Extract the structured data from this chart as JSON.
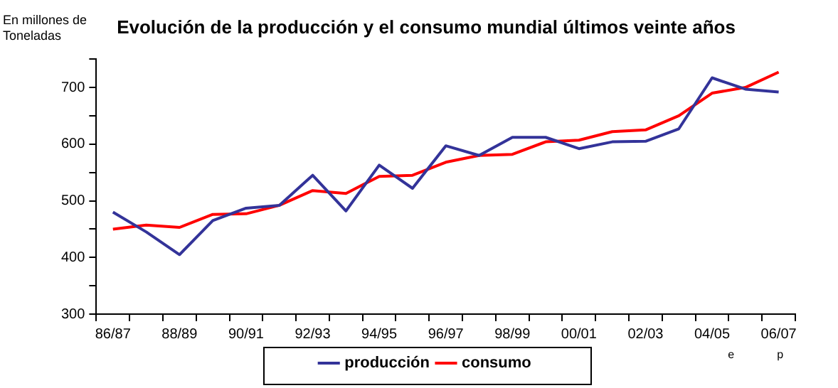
{
  "chart_data": {
    "type": "line",
    "title": "Evolución de la producción y el consumo mundial últimos veinte años",
    "ylabel": "En millones de Toneladas",
    "categories": [
      "86/87",
      null,
      "88/89",
      null,
      "90/91",
      null,
      "92/93",
      null,
      "94/95",
      null,
      "96/97",
      null,
      "98/99",
      null,
      "00/01",
      null,
      "02/03",
      null,
      "04/05",
      null,
      "06/07"
    ],
    "series": [
      {
        "name": "producción",
        "color": "#333399",
        "values": [
          480,
          445,
          405,
          465,
          487,
          492,
          545,
          482,
          563,
          522,
          597,
          580,
          612,
          612,
          592,
          604,
          605,
          627,
          717,
          697,
          692
        ]
      },
      {
        "name": "consumo",
        "color": "#ff0000",
        "values": [
          450,
          457,
          453,
          476,
          477,
          492,
          518,
          513,
          543,
          545,
          568,
          580,
          582,
          604,
          607,
          622,
          625,
          650,
          690,
          700,
          727
        ]
      }
    ],
    "ylim": [
      300,
      750
    ],
    "yticks": [
      300,
      {
        "value": 350,
        "label": null
      },
      400,
      {
        "value": 450,
        "label": null
      },
      500,
      {
        "value": 550,
        "label": null
      },
      600,
      {
        "value": 650,
        "label": null
      },
      700,
      {
        "value": 750,
        "label": null
      }
    ],
    "annotations": [
      "e",
      "p"
    ],
    "legend": "bottom",
    "marker": "none",
    "line_style": "solid",
    "grid": false
  }
}
